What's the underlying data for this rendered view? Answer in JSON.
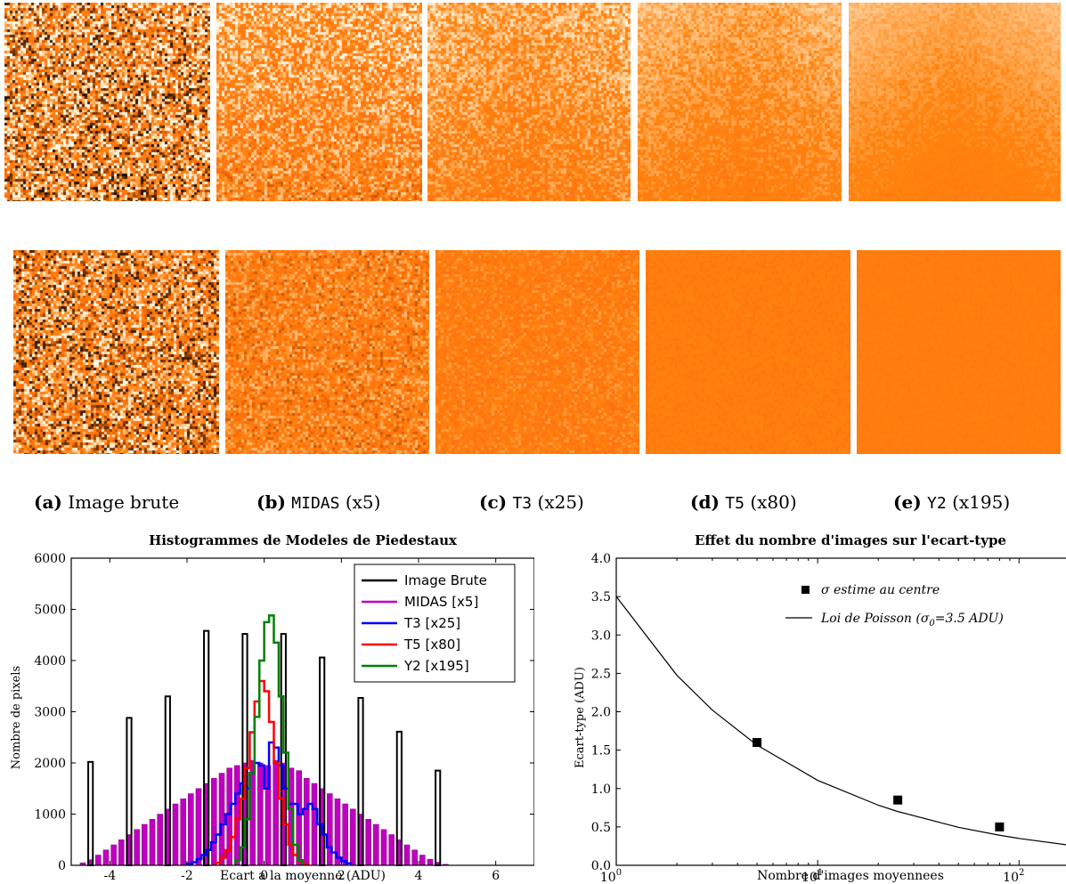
{
  "panels": [
    {
      "label": "(a)",
      "name": "Image brute",
      "mono": false,
      "factor": ""
    },
    {
      "label": "(b)",
      "name": "MIDAS",
      "mono": true,
      "factor": "(x5)"
    },
    {
      "label": "(c)",
      "name": "T3",
      "mono": true,
      "factor": "(x25)"
    },
    {
      "label": "(d)",
      "name": "T5",
      "mono": true,
      "factor": "(x80)"
    },
    {
      "label": "(e)",
      "name": "Y2",
      "mono": true,
      "factor": "(x195)"
    }
  ],
  "noise_levels": [
    1.0,
    0.55,
    0.35,
    0.2,
    0.1
  ],
  "colors": {
    "orange": "#ff8a1a",
    "black": "#000000",
    "magenta": "#bf00bf",
    "blue": "#0000ff",
    "red": "#ff0000",
    "green": "#008000"
  },
  "chart_data": [
    {
      "type": "histogram",
      "title": "Histogrammes de Modeles de Piedestaux",
      "xlabel": "Ecart a la moyenne (ADU)",
      "ylabel": "Nombre de pixels",
      "xlim": [
        -5,
        7
      ],
      "ylim": [
        0,
        6000
      ],
      "xticks": [
        -4,
        -2,
        0,
        2,
        4,
        6
      ],
      "yticks": [
        0,
        1000,
        2000,
        3000,
        4000,
        5000,
        6000
      ],
      "legend_position": "top-right",
      "legend": [
        "Image Brute",
        "MIDAS [x5]",
        "T3 [x25]",
        "T5 [x80]",
        "Y2 [x195]"
      ],
      "series": [
        {
          "name": "Image Brute",
          "type": "bars",
          "x": [
            -4.5,
            -3.5,
            -2.5,
            -1.5,
            -0.5,
            0.5,
            1.5,
            2.5,
            3.5,
            4.5
          ],
          "values": [
            2020,
            2880,
            3300,
            4580,
            4520,
            4520,
            4060,
            3270,
            2610,
            1850
          ]
        },
        {
          "name": "MIDAS [x5]",
          "type": "bars",
          "x_start": -4.8,
          "bin_width": 0.2,
          "values": [
            50,
            110,
            200,
            300,
            400,
            500,
            600,
            700,
            800,
            900,
            1000,
            1100,
            1200,
            1300,
            1400,
            1500,
            1600,
            1700,
            1800,
            1900,
            1950,
            2000,
            2050,
            2000,
            1950,
            2050,
            2000,
            1900,
            1850,
            1700,
            1600,
            1500,
            1400,
            1300,
            1200,
            1100,
            1000,
            900,
            800,
            700,
            600,
            500,
            400,
            300,
            200,
            120,
            60,
            20
          ]
        },
        {
          "name": "T3 [x25]",
          "type": "step",
          "x_start": -2,
          "bin_width": 0.125,
          "values": [
            30,
            60,
            120,
            200,
            300,
            450,
            600,
            800,
            1000,
            1200,
            1400,
            1600,
            1500,
            1800,
            2000,
            1950,
            1500,
            2400,
            2300,
            1950,
            1500,
            1200,
            1200,
            1000,
            1100,
            1200,
            1100,
            800,
            600,
            350,
            250,
            150,
            80,
            40
          ]
        },
        {
          "name": "T5 [x80]",
          "type": "step",
          "x_start": -1.25,
          "bin_width": 0.125,
          "values": [
            50,
            150,
            300,
            550,
            900,
            1300,
            1900,
            2600,
            3200,
            3600,
            3400,
            2800,
            2000,
            1300,
            800,
            400,
            200,
            80,
            30
          ]
        },
        {
          "name": "Y2 [x195]",
          "type": "step",
          "x_start": -0.75,
          "bin_width": 0.125,
          "values": [
            100,
            350,
            900,
            1800,
            2900,
            4000,
            4750,
            4880,
            4350,
            3300,
            2200,
            1100,
            400,
            100
          ]
        }
      ]
    },
    {
      "type": "scatter",
      "title": "Effet du nombre d'images sur l'ecart-type",
      "xlabel": "Nombre d'images moyennees",
      "ylabel": "Ecart-type (ADU)",
      "xscale": "log",
      "xlim": [
        1,
        180
      ],
      "ylim": [
        0,
        4
      ],
      "yticks": [
        0.0,
        0.5,
        1.0,
        1.5,
        2.0,
        2.5,
        3.0,
        3.5,
        4.0
      ],
      "xtick_labels": [
        "10",
        "10",
        "10"
      ],
      "xtick_exponents": [
        "0",
        "1",
        "2"
      ],
      "xtick_values": [
        1,
        10,
        100
      ],
      "legend": {
        "points_label": "σ estime au centre",
        "curve_label_prefix": "Loi de Poisson (σ",
        "curve_label_sub": "0",
        "curve_label_suffix": "=3.5 ADU)"
      },
      "points": {
        "x": [
          5,
          25,
          80
        ],
        "y": [
          1.6,
          0.85,
          0.5
        ]
      },
      "curve": {
        "type": "line",
        "sigma0": 3.5,
        "x": [
          1,
          2,
          3,
          5,
          10,
          20,
          25,
          50,
          80,
          100,
          180
        ]
      }
    }
  ]
}
